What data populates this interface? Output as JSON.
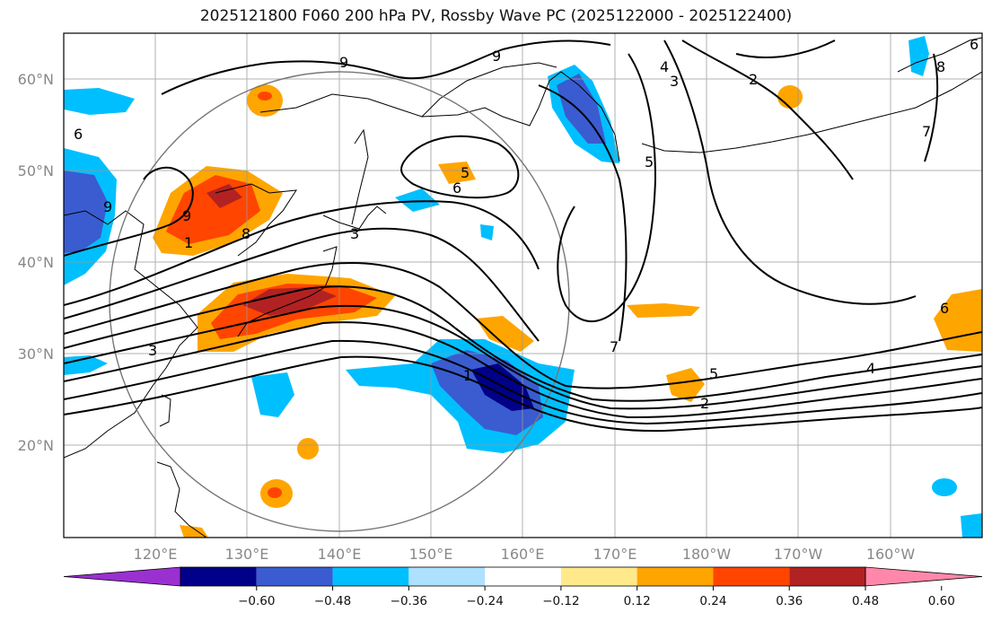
{
  "title": "2025121800 F060 200 hPa PV, Rossby Wave PC (2025122000 - 2025122400)",
  "lat_labels": [
    "60°N",
    "50°N",
    "40°N",
    "30°N",
    "20°N"
  ],
  "lon_labels": [
    "120°E",
    "130°E",
    "140°E",
    "150°E",
    "160°E",
    "170°E",
    "180°W",
    "170°W",
    "160°W"
  ],
  "contour_labels": [
    "6",
    "9",
    "9",
    "4",
    "3",
    "2",
    "8",
    "7",
    "9",
    "9",
    "5",
    "6",
    "5",
    "1",
    "3",
    "8",
    "6",
    "7",
    "5",
    "4",
    "2",
    "3",
    "1",
    "6"
  ],
  "colorbar": {
    "ticks": [
      "−0.60",
      "−0.48",
      "−0.36",
      "−0.24",
      "−0.12",
      "0.12",
      "0.24",
      "0.36",
      "0.48",
      "0.60"
    ],
    "colors": [
      "#9b30d0",
      "#000088",
      "#3a5cd0",
      "#00bfff",
      "#aee0ff",
      "#ffffff",
      "#ffe98a",
      "#ffa500",
      "#ff4500",
      "#b22222",
      "#ff88aa"
    ]
  }
}
